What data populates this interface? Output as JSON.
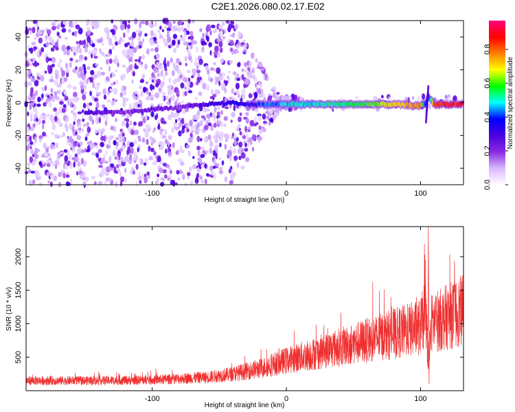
{
  "title": "C2E1.2026.080.02.17.E02",
  "chart_data": [
    {
      "type": "heatmap",
      "xlabel": "Height of straight line (km)",
      "ylabel": "Frequency (Hz)",
      "xlim": [
        -194,
        132
      ],
      "ylim": [
        -50,
        50
      ],
      "xticks": [
        -100,
        0,
        100
      ],
      "yticks": [
        -40,
        -20,
        0,
        20,
        40
      ],
      "grid": false,
      "colorbar": {
        "label": "Normalized spectral amplitude",
        "range": [
          0,
          0.97
        ],
        "ticks": [
          0.0,
          0.2,
          0.4,
          0.6,
          0.8
        ],
        "colors": [
          "#ffffff",
          "#d8b8ff",
          "#8a2be2",
          "#4b00e0",
          "#0000ff",
          "#00ffff",
          "#00ff00",
          "#ffff00",
          "#ff7f00",
          "#ff0000",
          "#ff0080"
        ]
      },
      "ridge": {
        "description_points_x": [
          -150,
          -120,
          -100,
          -80,
          -60,
          -40,
          -30,
          -20,
          -10,
          0,
          20,
          40,
          60,
          80,
          100,
          104,
          106,
          110,
          130
        ],
        "frequency_y": [
          -6,
          -6,
          -4,
          -3,
          -1,
          0,
          -1,
          -1,
          -1,
          -1,
          -1,
          -1,
          -1,
          -1,
          -2,
          0,
          4,
          -1,
          -1
        ],
        "amplitude": [
          0.3,
          0.2,
          0.25,
          0.2,
          0.3,
          0.35,
          0.35,
          0.4,
          0.45,
          0.5,
          0.5,
          0.55,
          0.6,
          0.7,
          0.8,
          0.3,
          0.3,
          0.85,
          0.9
        ]
      }
    },
    {
      "type": "line",
      "xlabel": "Height of straight line (km)",
      "ylabel": "SNR (10 * v/v)",
      "xlim": [
        -194,
        132
      ],
      "ylim": [
        0,
        2450
      ],
      "xticks": [
        -100,
        0,
        100
      ],
      "yticks": [
        500,
        1000,
        1500,
        2000
      ],
      "grid": false,
      "series": [
        {
          "color": "#f03030",
          "envelope_x": [
            -194,
            -150,
            -100,
            -60,
            -40,
            -20,
            0,
            20,
            40,
            60,
            80,
            100,
            104,
            106,
            108,
            120,
            132
          ],
          "baseline_y": [
            150,
            150,
            160,
            200,
            250,
            330,
            450,
            550,
            650,
            750,
            850,
            950,
            1200,
            300,
            1000,
            1100,
            1200
          ],
          "spikes": [
            {
              "x": 103.5,
              "y": 1950
            },
            {
              "x": 105.8,
              "y": 2450
            },
            {
              "x": 106.3,
              "y": 100
            }
          ]
        }
      ]
    }
  ]
}
